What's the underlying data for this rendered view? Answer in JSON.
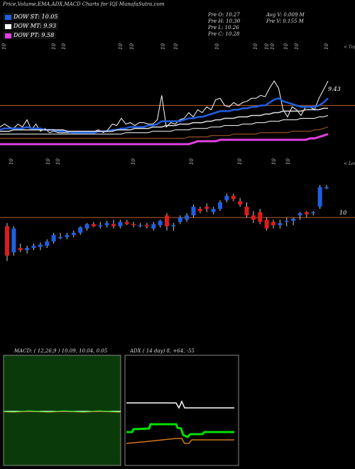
{
  "title": "Price,Volume,EMA,ADX,MACD Charts for IQI MunafaSutra.com",
  "legend": [
    {
      "label": "DOW ST: 10.05",
      "color": "#1f5fe0"
    },
    {
      "label": "DOW MT: 9.93",
      "color": "#ffffff"
    },
    {
      "label": "DOW PT: 9.58",
      "color": "#e040e0"
    }
  ],
  "quote": {
    "open": "Pre   O: 10.27",
    "high": "Pre   H: 10.30",
    "low": "Pre   L: 10.26",
    "close": "Pre   C: 10.28",
    "avg": "Avg V: 0.009 M",
    "vol": "Pre   V: 0.155 M"
  },
  "colors": {
    "up": "#1f5fe0",
    "down": "#e01a1a",
    "hline": "#b8622a",
    "macd_bg": "#0a3a0a",
    "adx_green": "#00e000"
  },
  "chart_data": [
    {
      "type": "line",
      "panel": "ema",
      "right_label": "9.43",
      "top_tag": "< Tops",
      "tick_labels": [
        "10",
        "10",
        "10",
        "10",
        "10",
        "10",
        "10",
        "10",
        "10",
        "10",
        "10",
        "10",
        "10",
        "10"
      ],
      "bottom_tick_labels": [
        "10",
        "10",
        "10",
        "10",
        "10",
        "10",
        "10",
        "10"
      ],
      "series": [
        {
          "values": [
            9.78,
            9.8,
            9.78,
            9.77,
            9.8,
            9.78,
            9.83,
            9.76,
            9.8,
            9.75,
            9.77,
            9.74,
            9.75,
            9.74,
            9.74,
            9.74,
            9.74,
            9.74,
            9.74,
            9.74,
            9.74,
            9.75,
            9.76,
            9.74,
            9.76,
            9.8,
            9.79,
            9.84,
            9.8,
            9.81,
            9.79,
            9.81,
            9.81,
            9.8,
            9.8,
            9.83,
            10.0,
            9.78,
            9.81,
            9.8,
            9.83,
            9.84,
            9.88,
            9.85,
            9.9,
            9.88,
            9.92,
            9.9,
            9.97,
            9.98,
            9.93,
            9.92,
            9.95,
            9.93,
            9.95,
            9.96,
            9.98,
            9.98,
            10.0,
            9.99,
            10.05,
            10.1,
            10.05,
            9.9,
            9.85,
            9.92,
            9.9,
            9.86,
            9.92,
            9.92,
            9.9,
            9.98,
            10.04,
            10.1
          ]
        },
        {
          "values": [
            9.76,
            9.77,
            9.77,
            9.77,
            9.77,
            9.77,
            9.78,
            9.77,
            9.77,
            9.77,
            9.76,
            9.76,
            9.76,
            9.75,
            9.75,
            9.75,
            9.74,
            9.74,
            9.74,
            9.74,
            9.74,
            9.74,
            9.75,
            9.75,
            9.75,
            9.76,
            9.76,
            9.77,
            9.77,
            9.78,
            9.78,
            9.78,
            9.78,
            9.79,
            9.79,
            9.8,
            9.82,
            9.82,
            9.82,
            9.82,
            9.82,
            9.83,
            9.84,
            9.84,
            9.85,
            9.85,
            9.86,
            9.87,
            9.88,
            9.89,
            9.89,
            9.89,
            9.9,
            9.9,
            9.91,
            9.91,
            9.92,
            9.92,
            9.93,
            9.93,
            9.95,
            9.97,
            9.98,
            9.96,
            9.95,
            9.94,
            9.93,
            9.92,
            9.92,
            9.92,
            9.92,
            9.93,
            9.95,
            9.98
          ]
        },
        {
          "values": [
            9.75,
            9.75,
            9.75,
            9.76,
            9.76,
            9.76,
            9.76,
            9.76,
            9.76,
            9.76,
            9.76,
            9.76,
            9.76,
            9.76,
            9.76,
            9.75,
            9.75,
            9.75,
            9.75,
            9.75,
            9.75,
            9.75,
            9.75,
            9.75,
            9.75,
            9.75,
            9.76,
            9.76,
            9.76,
            9.76,
            9.77,
            9.77,
            9.77,
            9.77,
            9.78,
            9.78,
            9.78,
            9.79,
            9.79,
            9.79,
            9.8,
            9.8,
            9.8,
            9.81,
            9.81,
            9.81,
            9.82,
            9.82,
            9.83,
            9.83,
            9.84,
            9.84,
            9.84,
            9.85,
            9.85,
            9.85,
            9.86,
            9.86,
            9.86,
            9.87,
            9.87,
            9.88,
            9.88,
            9.89,
            9.89,
            9.89,
            9.89,
            9.89,
            9.9,
            9.9,
            9.9,
            9.9,
            9.91,
            9.91
          ]
        },
        {
          "values": [
            9.73,
            9.73,
            9.73,
            9.73,
            9.73,
            9.73,
            9.73,
            9.73,
            9.73,
            9.73,
            9.73,
            9.73,
            9.73,
            9.73,
            9.73,
            9.73,
            9.73,
            9.73,
            9.73,
            9.73,
            9.73,
            9.73,
            9.73,
            9.73,
            9.73,
            9.73,
            9.73,
            9.73,
            9.74,
            9.74,
            9.74,
            9.74,
            9.74,
            9.74,
            9.75,
            9.75,
            9.75,
            9.75,
            9.75,
            9.76,
            9.76,
            9.76,
            9.76,
            9.77,
            9.77,
            9.77,
            9.77,
            9.78,
            9.78,
            9.78,
            9.79,
            9.79,
            9.79,
            9.79,
            9.8,
            9.8,
            9.8,
            9.81,
            9.81,
            9.81,
            9.82,
            9.82,
            9.82,
            9.83,
            9.83,
            9.83,
            9.83,
            9.84,
            9.84,
            9.84,
            9.84,
            9.85,
            9.85,
            9.86
          ]
        },
        {
          "values": [
            9.7,
            9.7,
            9.7,
            9.7,
            9.7,
            9.7,
            9.7,
            9.7,
            9.7,
            9.7,
            9.7,
            9.7,
            9.7,
            9.7,
            9.7,
            9.7,
            9.7,
            9.7,
            9.7,
            9.7,
            9.7,
            9.7,
            9.7,
            9.7,
            9.7,
            9.7,
            9.7,
            9.7,
            9.7,
            9.7,
            9.7,
            9.7,
            9.7,
            9.7,
            9.7,
            9.7,
            9.7,
            9.7,
            9.7,
            9.7,
            9.7,
            9.7,
            9.71,
            9.71,
            9.71,
            9.71,
            9.71,
            9.72,
            9.72,
            9.72,
            9.72,
            9.72,
            9.73,
            9.73,
            9.73,
            9.73,
            9.73,
            9.73,
            9.74,
            9.74,
            9.74,
            9.74,
            9.74,
            9.74,
            9.74,
            9.75,
            9.75,
            9.75,
            9.75,
            9.75,
            9.76,
            9.76,
            9.77,
            9.78
          ]
        },
        {
          "values": [
            9.66,
            9.66,
            9.66,
            9.66,
            9.66,
            9.66,
            9.66,
            9.66,
            9.66,
            9.66,
            9.66,
            9.66,
            9.66,
            9.66,
            9.66,
            9.66,
            9.66,
            9.66,
            9.66,
            9.66,
            9.66,
            9.66,
            9.66,
            9.66,
            9.66,
            9.66,
            9.66,
            9.66,
            9.66,
            9.66,
            9.66,
            9.66,
            9.66,
            9.66,
            9.66,
            9.66,
            9.66,
            9.66,
            9.66,
            9.66,
            9.66,
            9.66,
            9.66,
            9.67,
            9.68,
            9.68,
            9.68,
            9.68,
            9.68,
            9.69,
            9.69,
            9.69,
            9.69,
            9.69,
            9.69,
            9.69,
            9.69,
            9.69,
            9.69,
            9.69,
            9.69,
            9.69,
            9.69,
            9.69,
            9.69,
            9.69,
            9.69,
            9.69,
            9.69,
            9.7,
            9.7,
            9.71,
            9.72,
            9.73
          ]
        }
      ],
      "hline": 9.93,
      "ylim": [
        9.6,
        10.12
      ]
    },
    {
      "type": "candlestick",
      "panel": "price",
      "right_label": "10",
      "top_tag": "< Lows",
      "hline": 10.0,
      "ylim": [
        9.55,
        10.4
      ],
      "candles": [
        {
          "o": 9.92,
          "h": 9.95,
          "l": 9.6,
          "c": 9.65
        },
        {
          "o": 9.68,
          "h": 9.92,
          "l": 9.65,
          "c": 9.9
        },
        {
          "o": 9.72,
          "h": 9.76,
          "l": 9.68,
          "c": 9.7
        },
        {
          "o": 9.7,
          "h": 9.74,
          "l": 9.67,
          "c": 9.72
        },
        {
          "o": 9.72,
          "h": 9.76,
          "l": 9.7,
          "c": 9.74
        },
        {
          "o": 9.73,
          "h": 9.77,
          "l": 9.7,
          "c": 9.75
        },
        {
          "o": 9.74,
          "h": 9.8,
          "l": 9.72,
          "c": 9.78
        },
        {
          "o": 9.78,
          "h": 9.86,
          "l": 9.76,
          "c": 9.84
        },
        {
          "o": 9.82,
          "h": 9.86,
          "l": 9.8,
          "c": 9.82
        },
        {
          "o": 9.82,
          "h": 9.86,
          "l": 9.8,
          "c": 9.84
        },
        {
          "o": 9.84,
          "h": 9.88,
          "l": 9.82,
          "c": 9.86
        },
        {
          "o": 9.86,
          "h": 9.92,
          "l": 9.84,
          "c": 9.91
        },
        {
          "o": 9.9,
          "h": 9.95,
          "l": 9.88,
          "c": 9.94
        },
        {
          "o": 9.94,
          "h": 9.96,
          "l": 9.91,
          "c": 9.92
        },
        {
          "o": 9.92,
          "h": 9.96,
          "l": 9.9,
          "c": 9.93
        },
        {
          "o": 9.93,
          "h": 9.97,
          "l": 9.91,
          "c": 9.95
        },
        {
          "o": 9.94,
          "h": 9.98,
          "l": 9.9,
          "c": 9.92
        },
        {
          "o": 9.92,
          "h": 9.98,
          "l": 9.9,
          "c": 9.96
        },
        {
          "o": 9.96,
          "h": 9.98,
          "l": 9.93,
          "c": 9.94
        },
        {
          "o": 9.94,
          "h": 9.96,
          "l": 9.91,
          "c": 9.93
        },
        {
          "o": 9.93,
          "h": 9.95,
          "l": 9.91,
          "c": 9.93
        },
        {
          "o": 9.93,
          "h": 9.95,
          "l": 9.9,
          "c": 9.92
        },
        {
          "o": 9.9,
          "h": 9.96,
          "l": 9.88,
          "c": 9.94
        },
        {
          "o": 9.93,
          "h": 9.98,
          "l": 9.91,
          "c": 9.97
        },
        {
          "o": 10.02,
          "h": 10.04,
          "l": 9.88,
          "c": 9.92
        },
        {
          "o": 9.92,
          "h": 9.95,
          "l": 9.88,
          "c": 9.93
        },
        {
          "o": 9.96,
          "h": 10.02,
          "l": 9.94,
          "c": 10.0
        },
        {
          "o": 9.98,
          "h": 10.04,
          "l": 9.96,
          "c": 10.02
        },
        {
          "o": 10.02,
          "h": 10.12,
          "l": 10.0,
          "c": 10.1
        },
        {
          "o": 10.08,
          "h": 10.1,
          "l": 10.04,
          "c": 10.06
        },
        {
          "o": 10.1,
          "h": 10.13,
          "l": 10.05,
          "c": 10.08
        },
        {
          "o": 10.05,
          "h": 10.1,
          "l": 10.03,
          "c": 10.08
        },
        {
          "o": 10.08,
          "h": 10.16,
          "l": 10.06,
          "c": 10.14
        },
        {
          "o": 10.16,
          "h": 10.22,
          "l": 10.14,
          "c": 10.2
        },
        {
          "o": 10.2,
          "h": 10.22,
          "l": 10.15,
          "c": 10.17
        },
        {
          "o": 10.15,
          "h": 10.18,
          "l": 10.1,
          "c": 10.12
        },
        {
          "o": 10.1,
          "h": 10.14,
          "l": 10.0,
          "c": 10.02
        },
        {
          "o": 10.02,
          "h": 10.06,
          "l": 9.95,
          "c": 9.98
        },
        {
          "o": 10.05,
          "h": 10.08,
          "l": 9.94,
          "c": 9.96
        },
        {
          "o": 9.98,
          "h": 10.0,
          "l": 9.88,
          "c": 9.9
        },
        {
          "o": 9.96,
          "h": 9.98,
          "l": 9.9,
          "c": 9.93
        },
        {
          "o": 9.93,
          "h": 9.98,
          "l": 9.9,
          "c": 9.95
        },
        {
          "o": 9.96,
          "h": 10.0,
          "l": 9.92,
          "c": 9.97
        },
        {
          "o": 9.97,
          "h": 10.0,
          "l": 9.93,
          "c": 9.99
        },
        {
          "o": 10.02,
          "h": 10.05,
          "l": 9.98,
          "c": 10.04
        },
        {
          "o": 10.05,
          "h": 10.06,
          "l": 10.0,
          "c": 10.03
        },
        {
          "o": 10.04,
          "h": 10.06,
          "l": 10.02,
          "c": 10.05
        },
        {
          "o": 10.1,
          "h": 10.3,
          "l": 10.08,
          "c": 10.28
        },
        {
          "o": 10.27,
          "h": 10.3,
          "l": 10.26,
          "c": 10.28
        }
      ]
    },
    {
      "type": "line",
      "panel": "macd",
      "title": "MACD: ( 12,26,9 ) 10.09, 10.04, 0.05"
    },
    {
      "type": "line",
      "panel": "adx",
      "title": "ADX ( 14 day) 8, +64, -55"
    }
  ]
}
